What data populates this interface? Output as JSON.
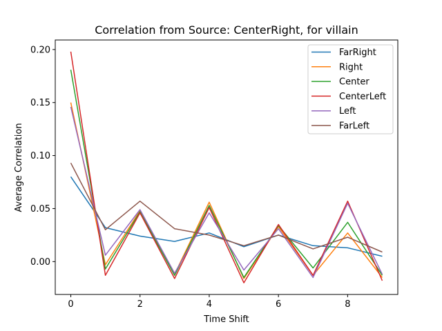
{
  "chart_data": {
    "type": "line",
    "title": "Correlation from Source: CenterRight, for villain",
    "xlabel": "Time Shift",
    "ylabel": "Average Correlation",
    "x": [
      0,
      1,
      2,
      3,
      4,
      5,
      6,
      7,
      8,
      9
    ],
    "xlim": [
      -0.45,
      9.45
    ],
    "ylim": [
      -0.031,
      0.209
    ],
    "xticks": [
      0,
      2,
      4,
      6,
      8
    ],
    "yticks": [
      0.0,
      0.05,
      0.1,
      0.15,
      0.2
    ],
    "xtick_labels": [
      "0",
      "2",
      "4",
      "6",
      "8"
    ],
    "ytick_labels": [
      "0.00",
      "0.05",
      "0.10",
      "0.15",
      "0.20"
    ],
    "grid": false,
    "legend_position": "top-right",
    "series": [
      {
        "name": "FarRight",
        "color": "#1f77b4",
        "values": [
          0.08,
          0.032,
          0.024,
          0.019,
          0.027,
          0.014,
          0.025,
          0.015,
          0.013,
          0.005
        ]
      },
      {
        "name": "Right",
        "color": "#ff7f0e",
        "values": [
          0.15,
          -0.003,
          0.048,
          -0.012,
          0.056,
          -0.016,
          0.033,
          -0.013,
          0.027,
          -0.015
        ]
      },
      {
        "name": "Center",
        "color": "#2ca02c",
        "values": [
          0.181,
          -0.007,
          0.047,
          -0.013,
          0.053,
          -0.015,
          0.034,
          -0.006,
          0.037,
          -0.013
        ]
      },
      {
        "name": "CenterLeft",
        "color": "#d62728",
        "values": [
          0.198,
          -0.013,
          0.046,
          -0.016,
          0.051,
          -0.02,
          0.035,
          -0.013,
          0.057,
          -0.018
        ]
      },
      {
        "name": "Left",
        "color": "#9467bd",
        "values": [
          0.146,
          0.006,
          0.049,
          -0.011,
          0.046,
          -0.008,
          0.031,
          -0.015,
          0.055,
          -0.012
        ]
      },
      {
        "name": "FarLeft",
        "color": "#8c564b",
        "values": [
          0.093,
          0.03,
          0.057,
          0.031,
          0.025,
          0.015,
          0.025,
          0.012,
          0.023,
          0.009
        ]
      }
    ]
  }
}
